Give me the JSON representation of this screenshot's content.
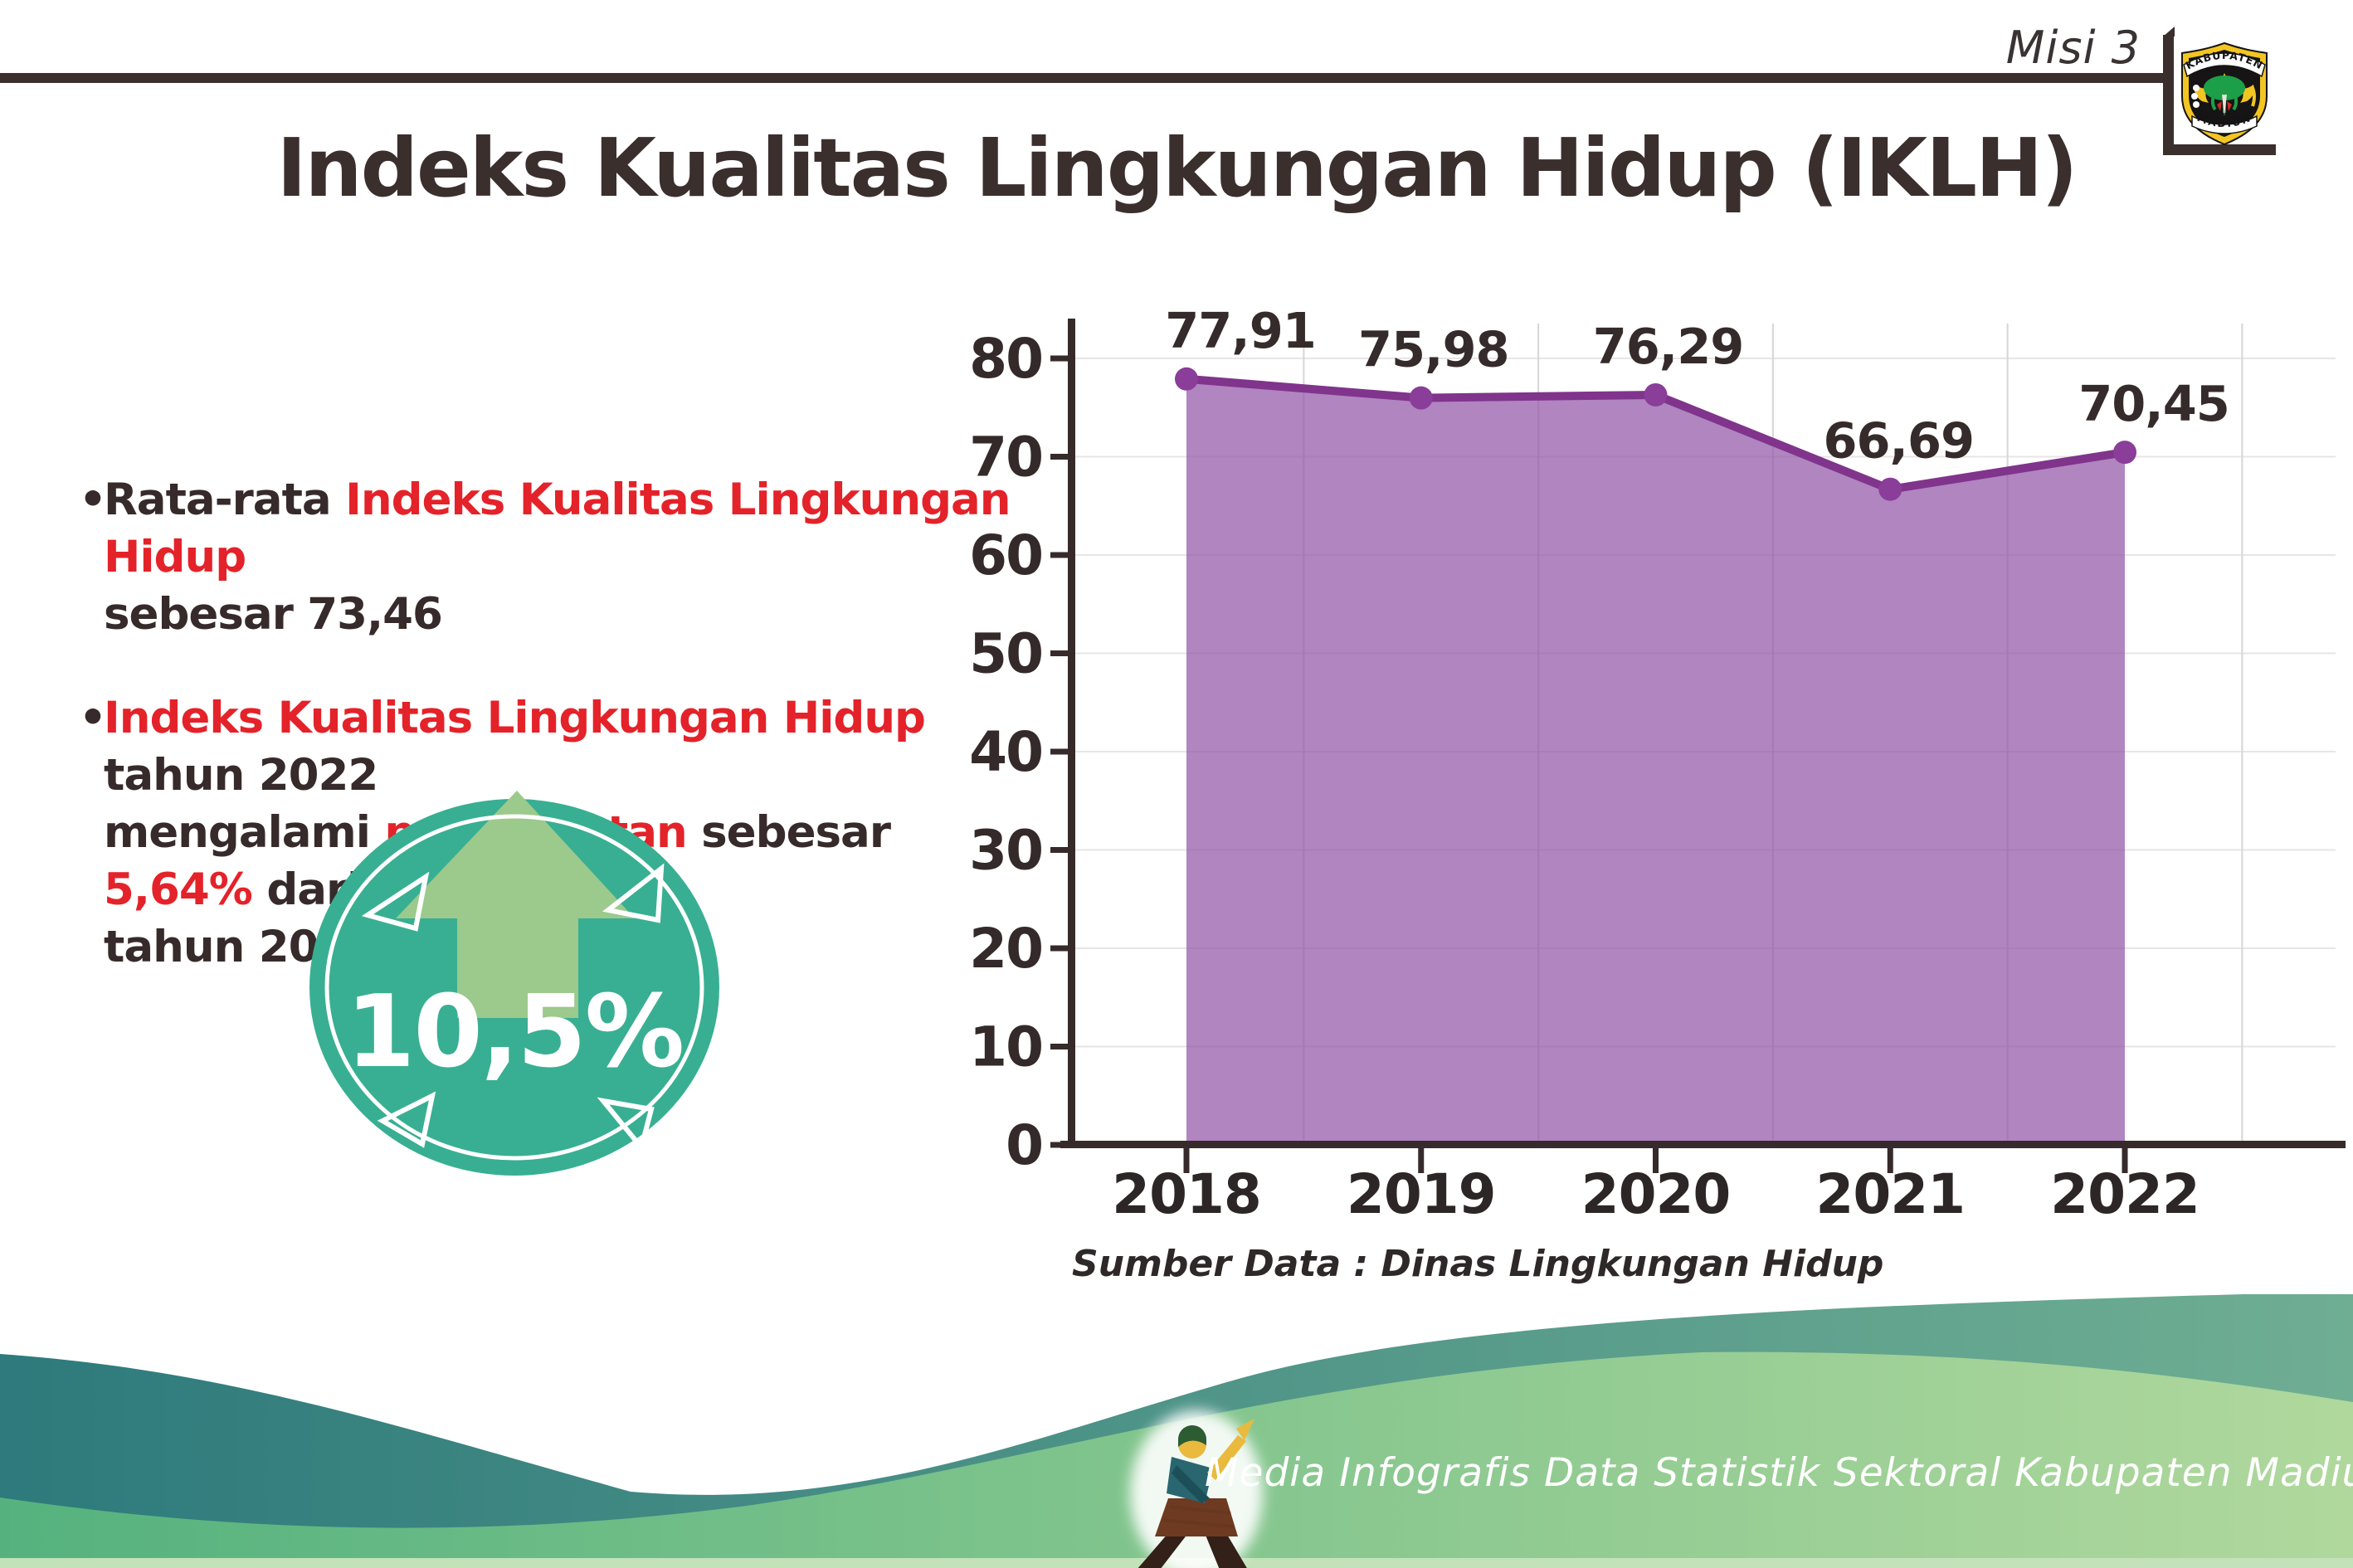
{
  "header": {
    "mission_label": "Misi 3"
  },
  "logo": {
    "top_text": "KABUPATEN",
    "bottom_text": "MADIUN"
  },
  "title": "Indeks Kualitas Lingkungan Hidup (IKLH)",
  "bullets": [
    {
      "dot": "•",
      "lines": [
        {
          "segs": [
            {
              "t": "Rata-rata "
            },
            {
              "t": "Indeks Kualitas Lingkungan Hidup"
            }
          ]
        },
        {
          "segs": [
            {
              "t": "sebesar 73,46"
            }
          ]
        }
      ]
    },
    {
      "dot": "•",
      "lines": [
        {
          "segs": [
            {
              "t": "Indeks Kualitas Lingkungan Hidup"
            },
            {
              "t": " tahun 2022"
            }
          ]
        },
        {
          "segs": [
            {
              "t": "mengalami "
            },
            {
              "t": "peningkatan"
            },
            {
              "t": " sebesar "
            },
            {
              "t": "5,64%"
            },
            {
              "t": " dari"
            }
          ]
        },
        {
          "segs": [
            {
              "t": "tahun 2021"
            }
          ]
        }
      ]
    }
  ],
  "badge": {
    "value": "10,5%"
  },
  "chart_data": {
    "type": "area",
    "title": "Indeks Kualitas Lingkungan Hidup (IKLH)",
    "categories": [
      "2018",
      "2019",
      "2020",
      "2021",
      "2022"
    ],
    "values": [
      77.91,
      75.98,
      76.29,
      66.69,
      70.45
    ],
    "value_labels": [
      "77,91",
      "75,98",
      "76,29",
      "66,69",
      "70,45"
    ],
    "xlabel": "",
    "ylabel": "",
    "ylim": [
      0,
      80
    ],
    "yticks": [
      0,
      10,
      20,
      30,
      40,
      50,
      60,
      70,
      80
    ],
    "grid": true,
    "legend": "none",
    "source": "Sumber Data : Dinas Lingkungan Hidup",
    "colors": {
      "area": "rgba(146,86,168,0.72)",
      "line": "#80348c",
      "marker": "#8a3d99",
      "label": "#352b2a",
      "axis": "#362b2a"
    }
  },
  "footer": {
    "text": "Media Infografis Data Statistik Sektoral Kabupaten Madiun |"
  }
}
